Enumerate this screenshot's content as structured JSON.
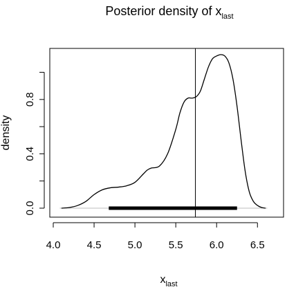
{
  "chart_data": {
    "type": "line",
    "title": {
      "main": "Posterior density of x",
      "subscript": "last"
    },
    "xlabel": {
      "main": "x",
      "subscript": "last"
    },
    "ylabel": "density",
    "xlim": [
      4.0,
      6.65
    ],
    "ylim": [
      0.0,
      1.13
    ],
    "x_ticks": [
      4.0,
      4.5,
      5.0,
      5.5,
      6.0,
      6.5
    ],
    "x_tick_labels": [
      "4.0",
      "4.5",
      "5.0",
      "5.5",
      "6.0",
      "6.5"
    ],
    "y_ticks": [
      0.0,
      0.4,
      0.8
    ],
    "y_tick_labels": [
      "0.0",
      "0.4",
      "0.8"
    ],
    "grid": false,
    "legend": "none",
    "series": [
      {
        "x": [
          4.1,
          4.2,
          4.3,
          4.4,
          4.5,
          4.6,
          4.7,
          4.8,
          4.9,
          5.0,
          5.1,
          5.15,
          5.2,
          5.3,
          5.4,
          5.5,
          5.55,
          5.6,
          5.65,
          5.7,
          5.75,
          5.8,
          5.85,
          5.9,
          5.95,
          6.0,
          6.05,
          6.1,
          6.15,
          6.2,
          6.25,
          6.3,
          6.35,
          6.4,
          6.45,
          6.5,
          6.55,
          6.6
        ],
        "y": [
          0.0,
          0.005,
          0.02,
          0.05,
          0.1,
          0.135,
          0.15,
          0.155,
          0.165,
          0.19,
          0.25,
          0.28,
          0.295,
          0.31,
          0.4,
          0.58,
          0.7,
          0.78,
          0.81,
          0.81,
          0.82,
          0.86,
          0.95,
          1.04,
          1.1,
          1.12,
          1.13,
          1.12,
          1.07,
          0.95,
          0.75,
          0.5,
          0.27,
          0.12,
          0.05,
          0.02,
          0.005,
          0.0
        ],
        "color": "#000000"
      }
    ],
    "vertical_line_x": 5.74,
    "interval": {
      "from": 4.68,
      "to": 6.25,
      "y": 0.0
    },
    "baseline_color": "#bebebe"
  }
}
